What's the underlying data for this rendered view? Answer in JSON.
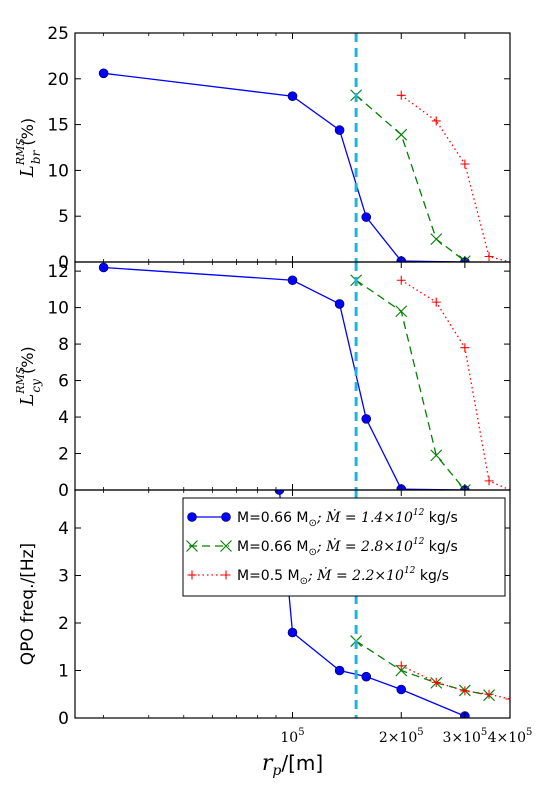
{
  "chart_data": [
    {
      "type": "line",
      "ylabel_main": "L",
      "ylabel_sup": "RMS",
      "ylabel_sub": "br",
      "ylabel_unit": "(%)",
      "ylim": [
        0,
        25
      ],
      "yticks": [
        "0",
        "5",
        "10",
        "15",
        "20",
        "25"
      ],
      "series": [
        {
          "x": [
            30000,
            100000,
            135000,
            160000,
            200000,
            300000
          ],
          "y": [
            20.6,
            18.1,
            14.4,
            4.9,
            0.1,
            0.0
          ],
          "style": "blue-solid-circle",
          "color": "#0000ff"
        },
        {
          "x": [
            150000,
            200000,
            250000,
            300000
          ],
          "y": [
            18.2,
            13.9,
            2.5,
            0.1
          ],
          "style": "green-dashed-x",
          "color": "#008000"
        },
        {
          "x": [
            200000,
            250000,
            300000,
            350000,
            400000
          ],
          "y": [
            18.2,
            15.4,
            10.7,
            0.6,
            0.0
          ],
          "style": "red-dotted-plus",
          "color": "#ff0000"
        }
      ]
    },
    {
      "type": "line",
      "ylabel_main": "L",
      "ylabel_sup": "RMS",
      "ylabel_sub": "cy",
      "ylabel_unit": "(%)",
      "ylim": [
        0,
        12.5
      ],
      "yticks": [
        "0",
        "2",
        "4",
        "6",
        "8",
        "10",
        "12"
      ],
      "series": [
        {
          "x": [
            30000,
            100000,
            135000,
            160000,
            200000,
            300000
          ],
          "y": [
            12.2,
            11.5,
            10.2,
            3.9,
            0.05,
            0.0
          ],
          "style": "blue-solid-circle",
          "color": "#0000ff"
        },
        {
          "x": [
            150000,
            200000,
            250000,
            300000
          ],
          "y": [
            11.5,
            9.8,
            1.9,
            0.0
          ],
          "style": "green-dashed-x",
          "color": "#008000"
        },
        {
          "x": [
            200000,
            250000,
            300000,
            350000,
            400000
          ],
          "y": [
            11.5,
            10.3,
            7.8,
            0.5,
            0.0
          ],
          "style": "red-dotted-plus",
          "color": "#ff0000"
        }
      ]
    },
    {
      "type": "line",
      "ylabel": "QPO freq./[Hz]",
      "ylim": [
        0,
        4.8
      ],
      "yticks": [
        "0",
        "1",
        "2",
        "3",
        "4"
      ],
      "legend_position": "top-right",
      "series": [
        {
          "name_pre": "M=0.66 M",
          "name_mid": "; Ṁ = 1.4×10",
          "name_exp": "12",
          "name_post": " kg/s",
          "x": [
            92000,
            100000,
            135000,
            160000,
            200000,
            300000
          ],
          "y": [
            4.8,
            1.8,
            1.0,
            0.87,
            0.6,
            0.04
          ],
          "style": "blue-solid-circle",
          "color": "#0000ff"
        },
        {
          "name_pre": "M=0.66 M",
          "name_mid": "; Ṁ = 2.8×10",
          "name_exp": "12",
          "name_post": " kg/s",
          "x": [
            150000,
            200000,
            250000,
            300000,
            350000
          ],
          "y": [
            1.62,
            1.0,
            0.74,
            0.58,
            0.48
          ],
          "style": "green-dashed-x",
          "color": "#008000"
        },
        {
          "name_pre": "M=0.5 M",
          "name_mid": "; Ṁ = 2.2×10",
          "name_exp": "12",
          "name_post": " kg/s",
          "x": [
            200000,
            250000,
            300000,
            350000,
            400000
          ],
          "y": [
            1.1,
            0.75,
            0.57,
            0.5,
            0.4
          ],
          "style": "red-dotted-plus",
          "color": "#ff0000"
        }
      ]
    }
  ],
  "x_axis": {
    "scale": "log",
    "xlim": [
      25000,
      400000
    ],
    "label_main": "r",
    "label_sub": "p",
    "label_unit": "/[m]",
    "ticks": [
      {
        "x": 100000,
        "mant": "10",
        "exp": "5"
      },
      {
        "x": 200000,
        "mant": "2×10",
        "exp": "5"
      },
      {
        "x": 300000,
        "mant": "3×10",
        "exp": "5"
      },
      {
        "x": 400000,
        "mant": "4×10",
        "exp": "5"
      }
    ]
  },
  "vline": {
    "x": 150000,
    "color": "#1fb4e0",
    "style": "dashed"
  },
  "legend_sun_symbol": "⊙"
}
